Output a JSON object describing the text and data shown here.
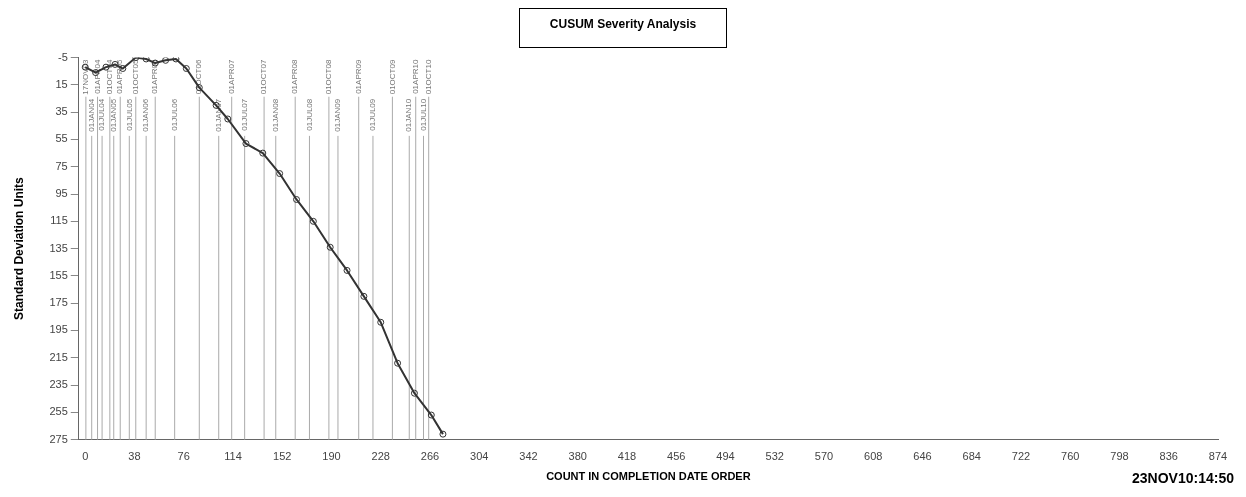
{
  "chart_data": {
    "type": "line",
    "title": "CUSUM Severity Analysis",
    "xlabel": "COUNT IN COMPLETION DATE ORDER",
    "ylabel": "Standard Deviation Units",
    "annotations": [
      "23NOV10:14:50"
    ],
    "xlim": [
      -5,
      874
    ],
    "xticks": [
      0,
      38,
      76,
      114,
      152,
      190,
      228,
      266,
      304,
      342,
      380,
      418,
      456,
      494,
      532,
      570,
      608,
      646,
      684,
      722,
      760,
      798,
      836,
      874
    ],
    "ylim": [
      275,
      -5
    ],
    "yticks": [
      -5,
      15,
      35,
      55,
      75,
      95,
      115,
      135,
      155,
      175,
      195,
      215,
      235,
      255,
      275
    ],
    "grid": false,
    "legend": false,
    "marker": "circle",
    "line_style": "solid",
    "series": [
      {
        "color": "#333333",
        "x": [
          0,
          8,
          16,
          23,
          29,
          39,
          47,
          54,
          62,
          70,
          78,
          88,
          101,
          110,
          124,
          137,
          150,
          163,
          176,
          189,
          202,
          215,
          228,
          241,
          254,
          267,
          276
        ],
        "values": [
          2,
          6,
          2,
          0,
          3,
          -5,
          -4,
          -1,
          -3,
          -4,
          3,
          17,
          30,
          40,
          58,
          65,
          80,
          99,
          115,
          134,
          151,
          170,
          189,
          219,
          241,
          257,
          271
        ]
      }
    ],
    "ref_lines": [
      {
        "axis": "x",
        "value": 0.5,
        "label": "17NOV03",
        "color": "#aaaaaa"
      },
      {
        "axis": "x",
        "value": 5,
        "label": "01JAN04",
        "color": "#aaaaaa"
      },
      {
        "axis": "x",
        "value": 9.5,
        "label": "01APR04",
        "color": "#aaaaaa"
      },
      {
        "axis": "x",
        "value": 13,
        "label": "01JUL04",
        "color": "#aaaaaa"
      },
      {
        "axis": "x",
        "value": 19,
        "label": "01OCT04",
        "color": "#aaaaaa"
      },
      {
        "axis": "x",
        "value": 22,
        "label": "01JAN05",
        "color": "#aaaaaa"
      },
      {
        "axis": "x",
        "value": 27,
        "label": "01APR05",
        "color": "#aaaaaa"
      },
      {
        "axis": "x",
        "value": 34,
        "label": "01JUL05",
        "color": "#aaaaaa"
      },
      {
        "axis": "x",
        "value": 39,
        "label": "01OCT05",
        "color": "#aaaaaa"
      },
      {
        "axis": "x",
        "value": 47,
        "label": "01JAN06",
        "color": "#aaaaaa"
      },
      {
        "axis": "x",
        "value": 54,
        "label": "01APR06",
        "color": "#aaaaaa"
      },
      {
        "axis": "x",
        "value": 69,
        "label": "01JUL06",
        "color": "#aaaaaa"
      },
      {
        "axis": "x",
        "value": 88,
        "label": "01OCT06",
        "color": "#aaaaaa"
      },
      {
        "axis": "x",
        "value": 103,
        "label": "01JAN07",
        "color": "#aaaaaa"
      },
      {
        "axis": "x",
        "value": 113,
        "label": "01APR07",
        "color": "#aaaaaa"
      },
      {
        "axis": "x",
        "value": 123,
        "label": "01JUL07",
        "color": "#aaaaaa"
      },
      {
        "axis": "x",
        "value": 138,
        "label": "01OCT07",
        "color": "#aaaaaa"
      },
      {
        "axis": "x",
        "value": 147,
        "label": "01JAN08",
        "color": "#aaaaaa"
      },
      {
        "axis": "x",
        "value": 162,
        "label": "01APR08",
        "color": "#aaaaaa"
      },
      {
        "axis": "x",
        "value": 173,
        "label": "01JUL08",
        "color": "#aaaaaa"
      },
      {
        "axis": "x",
        "value": 188,
        "label": "01OCT08",
        "color": "#aaaaaa"
      },
      {
        "axis": "x",
        "value": 195,
        "label": "01JAN09",
        "color": "#aaaaaa"
      },
      {
        "axis": "x",
        "value": 211,
        "label": "01APR09",
        "color": "#aaaaaa"
      },
      {
        "axis": "x",
        "value": 222,
        "label": "01JUL09",
        "color": "#aaaaaa"
      },
      {
        "axis": "x",
        "value": 237,
        "label": "01OCT09",
        "color": "#aaaaaa"
      },
      {
        "axis": "x",
        "value": 250,
        "label": "01JAN10",
        "color": "#aaaaaa"
      },
      {
        "axis": "x",
        "value": 255,
        "label": "01APR10",
        "color": "#aaaaaa"
      },
      {
        "axis": "x",
        "value": 261,
        "label": "01JUL10",
        "color": "#aaaaaa"
      },
      {
        "axis": "x",
        "value": 265,
        "label": "01OCT10",
        "color": "#aaaaaa"
      }
    ]
  }
}
